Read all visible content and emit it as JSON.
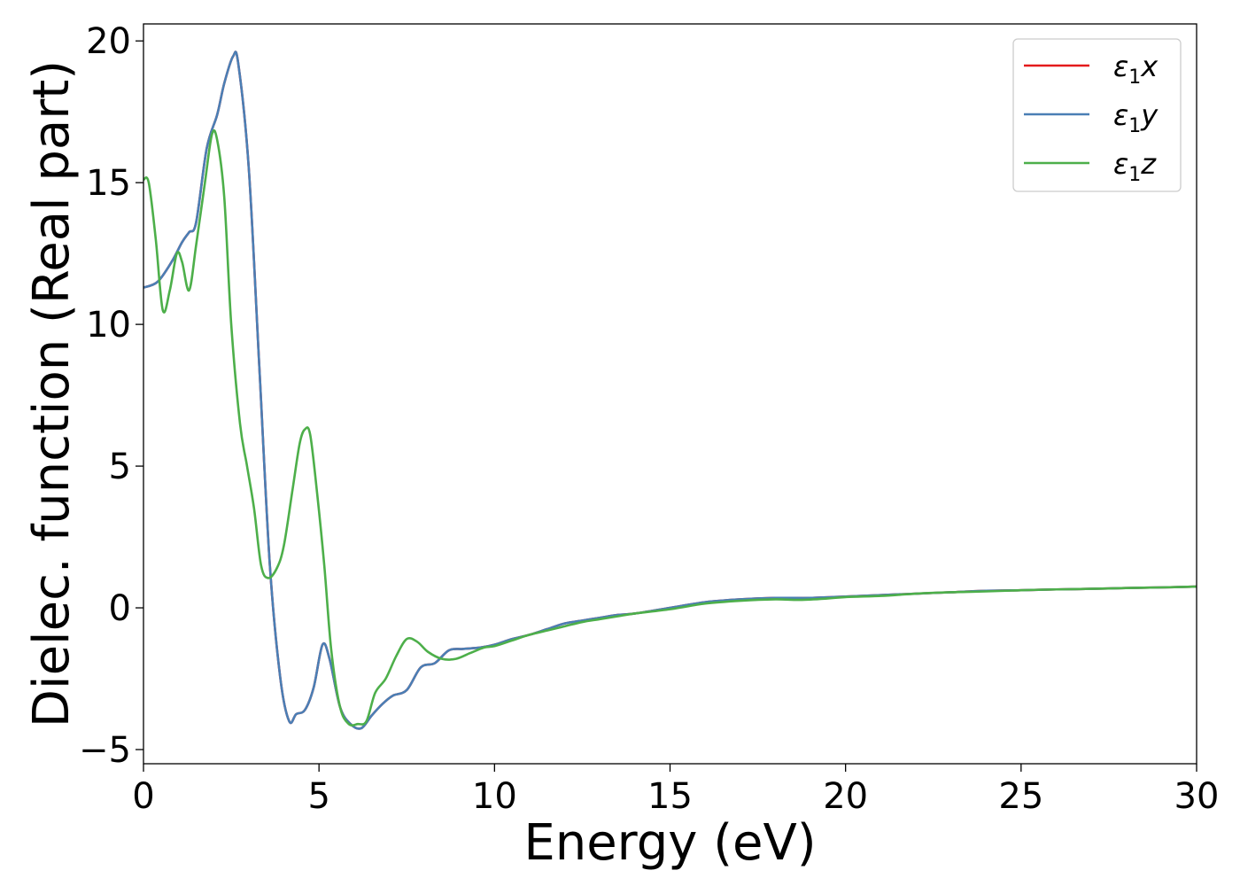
{
  "chart_data": {
    "type": "line",
    "xlabel": "Energy (eV)",
    "ylabel": "Dielec. function (Real part)",
    "xlim": [
      0,
      30
    ],
    "ylim": [
      -5.5,
      20.6
    ],
    "xticks": [
      0,
      5,
      10,
      15,
      20,
      25,
      30
    ],
    "xtick_labels": [
      "0",
      "5",
      "10",
      "15",
      "20",
      "25",
      "30"
    ],
    "yticks": [
      -5,
      0,
      5,
      10,
      15,
      20
    ],
    "ytick_labels": [
      "−5",
      "0",
      "5",
      "10",
      "15",
      "20"
    ],
    "grid": false,
    "legend_position": "top-right",
    "series": [
      {
        "name": "ε₁x",
        "legend_base": "ε",
        "legend_sub": "1",
        "legend_var": "x",
        "color": "#e41a1c",
        "x": [
          0,
          0.4,
          0.8,
          1.1,
          1.3,
          1.5,
          1.8,
          2.1,
          2.3,
          2.55,
          2.7,
          3.0,
          3.3,
          3.6,
          3.9,
          4.15,
          4.35,
          4.6,
          4.85,
          5.1,
          5.3,
          5.6,
          5.9,
          6.2,
          6.5,
          6.8,
          7.1,
          7.5,
          7.9,
          8.3,
          8.7,
          9.1,
          9.6,
          10.0,
          10.5,
          11.0,
          11.5,
          12.0,
          12.5,
          13.0,
          13.5,
          14.0,
          15.0,
          16.0,
          17.0,
          18.0,
          19.0,
          20.0,
          21.0,
          22.0,
          23.0,
          24.0,
          25.0,
          26.0,
          27.0,
          28.0,
          29.0,
          30.0
        ],
        "y": [
          11.3,
          11.5,
          12.2,
          12.9,
          13.25,
          13.6,
          16.2,
          17.4,
          18.5,
          19.45,
          19.2,
          15.5,
          8.5,
          1.5,
          -2.5,
          -4.0,
          -3.75,
          -3.6,
          -2.8,
          -1.3,
          -1.8,
          -3.5,
          -4.1,
          -4.25,
          -3.8,
          -3.4,
          -3.1,
          -2.9,
          -2.1,
          -1.95,
          -1.5,
          -1.45,
          -1.4,
          -1.3,
          -1.1,
          -0.95,
          -0.75,
          -0.55,
          -0.45,
          -0.35,
          -0.25,
          -0.2,
          0.0,
          0.2,
          0.3,
          0.35,
          0.35,
          0.4,
          0.45,
          0.5,
          0.55,
          0.6,
          0.62,
          0.65,
          0.67,
          0.7,
          0.72,
          0.75
        ]
      },
      {
        "name": "ε₁y",
        "legend_base": "ε",
        "legend_sub": "1",
        "legend_var": "y",
        "color": "#4a7fb5",
        "x": [
          0,
          0.4,
          0.8,
          1.1,
          1.3,
          1.5,
          1.8,
          2.1,
          2.3,
          2.55,
          2.7,
          3.0,
          3.3,
          3.6,
          3.9,
          4.15,
          4.35,
          4.6,
          4.85,
          5.1,
          5.3,
          5.6,
          5.9,
          6.2,
          6.5,
          6.8,
          7.1,
          7.5,
          7.9,
          8.3,
          8.7,
          9.1,
          9.6,
          10.0,
          10.5,
          11.0,
          11.5,
          12.0,
          12.5,
          13.0,
          13.5,
          14.0,
          15.0,
          16.0,
          17.0,
          18.0,
          19.0,
          20.0,
          21.0,
          22.0,
          23.0,
          24.0,
          25.0,
          26.0,
          27.0,
          28.0,
          29.0,
          30.0
        ],
        "y": [
          11.3,
          11.5,
          12.2,
          12.9,
          13.25,
          13.6,
          16.2,
          17.4,
          18.5,
          19.45,
          19.2,
          15.5,
          8.5,
          1.5,
          -2.5,
          -4.0,
          -3.75,
          -3.6,
          -2.8,
          -1.3,
          -1.8,
          -3.5,
          -4.1,
          -4.25,
          -3.8,
          -3.4,
          -3.1,
          -2.9,
          -2.1,
          -1.95,
          -1.5,
          -1.45,
          -1.4,
          -1.3,
          -1.1,
          -0.95,
          -0.75,
          -0.55,
          -0.45,
          -0.35,
          -0.25,
          -0.2,
          0.0,
          0.2,
          0.3,
          0.35,
          0.35,
          0.4,
          0.45,
          0.5,
          0.55,
          0.6,
          0.62,
          0.65,
          0.67,
          0.7,
          0.72,
          0.75
        ]
      },
      {
        "name": "ε₁z",
        "legend_base": "ε",
        "legend_sub": "1",
        "legend_var": "z",
        "color": "#4daf4a",
        "x": [
          0,
          0.15,
          0.35,
          0.55,
          0.75,
          0.95,
          1.1,
          1.3,
          1.5,
          1.75,
          1.95,
          2.1,
          2.3,
          2.5,
          2.75,
          2.95,
          3.15,
          3.35,
          3.55,
          3.8,
          4.0,
          4.25,
          4.45,
          4.6,
          4.75,
          4.95,
          5.15,
          5.35,
          5.6,
          5.85,
          6.1,
          6.35,
          6.6,
          6.9,
          7.2,
          7.5,
          7.8,
          8.1,
          8.5,
          8.9,
          9.3,
          9.7,
          10.0,
          10.5,
          11.0,
          11.5,
          12.0,
          12.5,
          13.0,
          13.5,
          14.0,
          15.0,
          16.0,
          17.0,
          18.0,
          18.7,
          19.5,
          20.0,
          21.0,
          22.0,
          23.0,
          24.0,
          25.0,
          26.0,
          27.0,
          28.0,
          29.0,
          30.0
        ],
        "y": [
          15.1,
          15.0,
          13.0,
          10.5,
          11.2,
          12.5,
          12.2,
          11.2,
          12.8,
          15.0,
          16.7,
          16.5,
          14.5,
          10.0,
          6.5,
          5.0,
          3.5,
          1.5,
          1.05,
          1.4,
          2.2,
          4.2,
          5.8,
          6.3,
          6.1,
          4.0,
          1.5,
          -1.5,
          -3.5,
          -4.1,
          -4.1,
          -4.0,
          -3.0,
          -2.5,
          -1.7,
          -1.1,
          -1.2,
          -1.55,
          -1.8,
          -1.8,
          -1.6,
          -1.4,
          -1.35,
          -1.15,
          -0.95,
          -0.8,
          -0.65,
          -0.5,
          -0.4,
          -0.3,
          -0.2,
          -0.05,
          0.15,
          0.25,
          0.3,
          0.28,
          0.33,
          0.38,
          0.42,
          0.5,
          0.55,
          0.58,
          0.62,
          0.65,
          0.67,
          0.7,
          0.72,
          0.75
        ]
      }
    ]
  }
}
